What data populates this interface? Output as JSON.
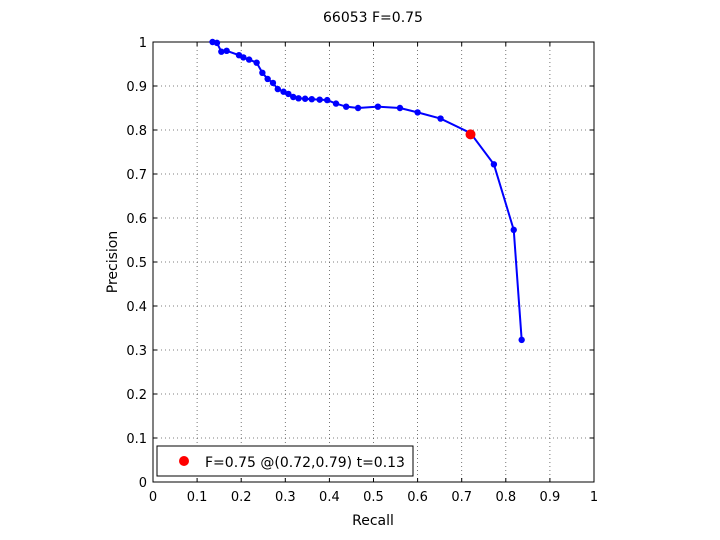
{
  "chart_data": {
    "type": "line",
    "title": "66053 F=0.75",
    "xlabel": "Recall",
    "ylabel": "Precision",
    "xlim": [
      0,
      1
    ],
    "ylim": [
      0,
      1
    ],
    "xticks": [
      "0",
      "0.1",
      "0.2",
      "0.3",
      "0.4",
      "0.5",
      "0.6",
      "0.7",
      "0.8",
      "0.9",
      "1"
    ],
    "yticks": [
      "0",
      "0.1",
      "0.2",
      "0.3",
      "0.4",
      "0.5",
      "0.6",
      "0.7",
      "0.8",
      "0.9",
      "1"
    ],
    "grid": true,
    "legend_position": "bottom-left",
    "series": [
      {
        "color": "#0000ff",
        "points": [
          [
            0.135,
            1.0
          ],
          [
            0.145,
            0.998
          ],
          [
            0.155,
            0.978
          ],
          [
            0.167,
            0.98
          ],
          [
            0.195,
            0.97
          ],
          [
            0.205,
            0.965
          ],
          [
            0.218,
            0.96
          ],
          [
            0.235,
            0.953
          ],
          [
            0.248,
            0.93
          ],
          [
            0.26,
            0.916
          ],
          [
            0.272,
            0.907
          ],
          [
            0.283,
            0.893
          ],
          [
            0.296,
            0.887
          ],
          [
            0.307,
            0.882
          ],
          [
            0.318,
            0.875
          ],
          [
            0.33,
            0.872
          ],
          [
            0.345,
            0.871
          ],
          [
            0.36,
            0.87
          ],
          [
            0.378,
            0.869
          ],
          [
            0.395,
            0.868
          ],
          [
            0.415,
            0.86
          ],
          [
            0.438,
            0.853
          ],
          [
            0.465,
            0.85
          ],
          [
            0.51,
            0.853
          ],
          [
            0.56,
            0.85
          ],
          [
            0.6,
            0.84
          ],
          [
            0.652,
            0.826
          ],
          [
            0.72,
            0.793
          ],
          [
            0.773,
            0.722
          ],
          [
            0.818,
            0.573
          ],
          [
            0.836,
            0.323
          ]
        ]
      }
    ],
    "highlight": {
      "recall": 0.72,
      "precision": 0.79,
      "color": "#ff0000",
      "label": "F=0.75 @(0.72,0.79) t=0.13"
    }
  }
}
